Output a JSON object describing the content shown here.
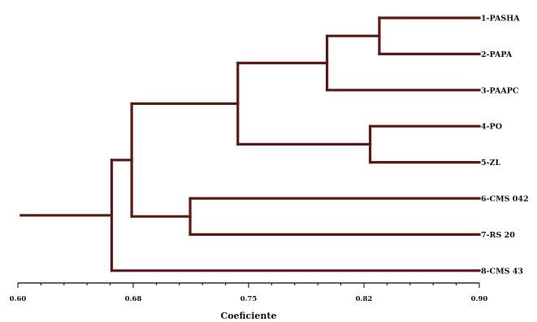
{
  "chart_data": {
    "type": "dendrogram",
    "xlabel": "Coeficiente",
    "xlim": [
      0.6,
      0.9
    ],
    "xticks": [
      {
        "value": 0.6,
        "label": "0.60"
      },
      {
        "value": 0.675,
        "label": "0.68"
      },
      {
        "value": 0.75,
        "label": "0.75"
      },
      {
        "value": 0.825,
        "label": "0.82"
      },
      {
        "value": 0.9,
        "label": "0.90"
      }
    ],
    "leaves": [
      "1-PASHA",
      "2-PAPA",
      "3-PAAPC",
      "4-PO",
      "5-ZL",
      "6-CMS 042",
      "7-RS 20",
      "8-CMS 43"
    ],
    "merges": [
      {
        "id": "A",
        "children": [
          "1-PASHA",
          "2-PAPA"
        ],
        "height": 0.835
      },
      {
        "id": "B",
        "children": [
          "A",
          "3-PAAPC"
        ],
        "height": 0.801
      },
      {
        "id": "C",
        "children": [
          "4-PO",
          "5-ZL"
        ],
        "height": 0.829
      },
      {
        "id": "D",
        "children": [
          "B",
          "C"
        ],
        "height": 0.743
      },
      {
        "id": "E",
        "children": [
          "6-CMS 042",
          "7-RS 20"
        ],
        "height": 0.712
      },
      {
        "id": "F",
        "children": [
          "D",
          "E"
        ],
        "height": 0.674
      },
      {
        "id": "G",
        "children": [
          "F",
          "8-CMS 43"
        ],
        "height": 0.661
      }
    ],
    "root_height": 0.602,
    "branch_color": "#5b1a14",
    "grid": false
  }
}
